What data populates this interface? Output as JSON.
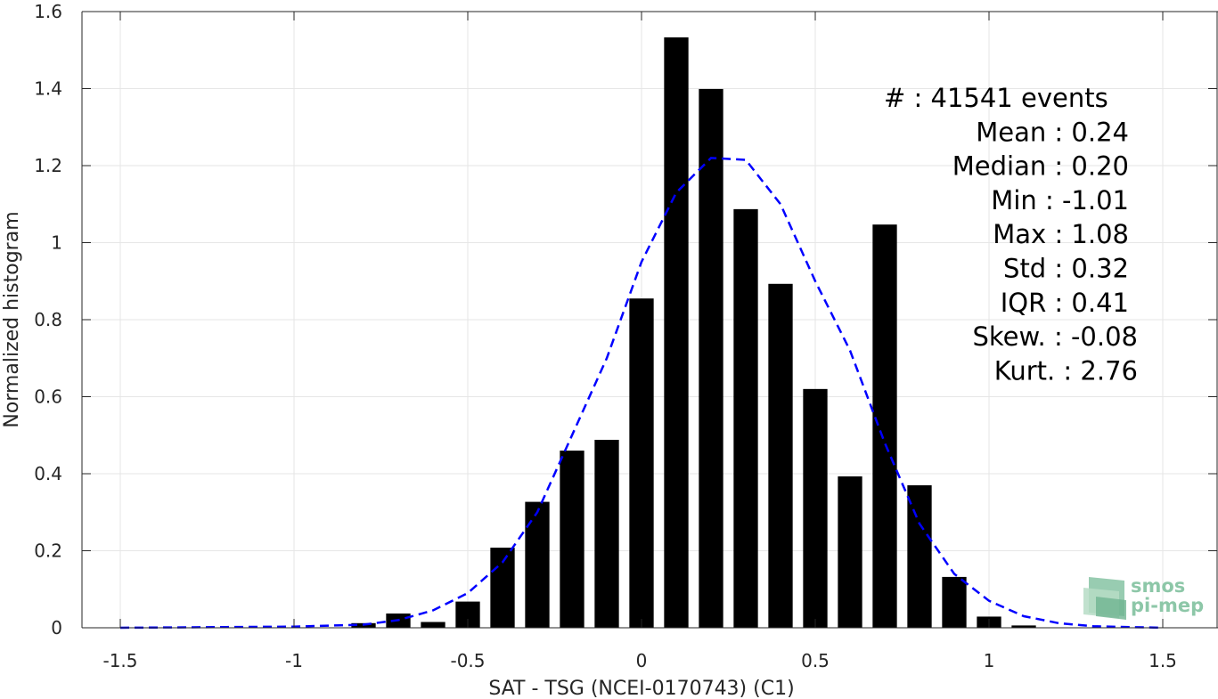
{
  "chart_data": {
    "type": "bar",
    "xlabel": "SAT - TSG (NCEI-0170743) (C1)",
    "ylabel": "Normalized histogram",
    "xlim": [
      -1.6,
      1.6
    ],
    "ylim": [
      0,
      1.6
    ],
    "x_ticks": [
      -1.5,
      -1,
      -0.5,
      0,
      0.5,
      1,
      1.5
    ],
    "x_tick_labels": [
      "-1.5",
      "-1",
      "-0.5",
      "0",
      "0.5",
      "1",
      "1.5"
    ],
    "y_ticks": [
      0,
      0.2,
      0.4,
      0.6,
      0.8,
      1,
      1.2,
      1.4,
      1.6
    ],
    "y_tick_labels": [
      "0",
      "0.2",
      "0.4",
      "0.6",
      "0.8",
      "1",
      "1.2",
      "1.4",
      "1.6"
    ],
    "grid": true,
    "bar_width": 0.07,
    "bar_color": "#000000",
    "bins": [
      {
        "x": -0.8,
        "y": 0.012
      },
      {
        "x": -0.7,
        "y": 0.037
      },
      {
        "x": -0.6,
        "y": 0.015
      },
      {
        "x": -0.5,
        "y": 0.068
      },
      {
        "x": -0.4,
        "y": 0.208
      },
      {
        "x": -0.3,
        "y": 0.327
      },
      {
        "x": -0.2,
        "y": 0.46
      },
      {
        "x": -0.1,
        "y": 0.488
      },
      {
        "x": 0.0,
        "y": 0.855
      },
      {
        "x": 0.1,
        "y": 1.533
      },
      {
        "x": 0.2,
        "y": 1.399
      },
      {
        "x": 0.3,
        "y": 1.087
      },
      {
        "x": 0.4,
        "y": 0.893
      },
      {
        "x": 0.5,
        "y": 0.62
      },
      {
        "x": 0.6,
        "y": 0.393
      },
      {
        "x": 0.7,
        "y": 1.047
      },
      {
        "x": 0.8,
        "y": 0.37
      },
      {
        "x": 0.9,
        "y": 0.132
      },
      {
        "x": 1.0,
        "y": 0.029
      },
      {
        "x": 1.1,
        "y": 0.006
      }
    ],
    "fit_curve": {
      "color": "#0000ff",
      "style": "dashed",
      "x": [
        -1.5,
        -1.0,
        -0.8,
        -0.7,
        -0.6,
        -0.5,
        -0.4,
        -0.3,
        -0.2,
        -0.1,
        0.0,
        0.1,
        0.2,
        0.3,
        0.4,
        0.5,
        0.6,
        0.7,
        0.8,
        0.9,
        1.0,
        1.1,
        1.2,
        1.3,
        1.5
      ],
      "y": [
        0.0,
        0.003,
        0.008,
        0.02,
        0.045,
        0.09,
        0.17,
        0.3,
        0.5,
        0.7,
        0.95,
        1.13,
        1.22,
        1.215,
        1.1,
        0.9,
        0.72,
        0.48,
        0.27,
        0.14,
        0.07,
        0.03,
        0.012,
        0.004,
        0.0
      ]
    },
    "stats": [
      {
        "label": "#  : 41541 events",
        "align": "left"
      },
      {
        "label": "Mean : 0.24",
        "align": "right"
      },
      {
        "label": "Median : 0.20",
        "align": "right"
      },
      {
        "label": "Min : -1.01",
        "align": "right"
      },
      {
        "label": "Max : 1.08",
        "align": "right"
      },
      {
        "label": "Std : 0.32",
        "align": "right"
      },
      {
        "label": "IQR : 0.41",
        "align": "right"
      },
      {
        "label": "Skew. : -0.08",
        "align": "right2"
      },
      {
        "label": "Kurt. : 2.76",
        "align": "right2"
      }
    ]
  },
  "logo": {
    "line1": "smos",
    "line2": "pi-mep",
    "color": "#8dc7a8"
  }
}
